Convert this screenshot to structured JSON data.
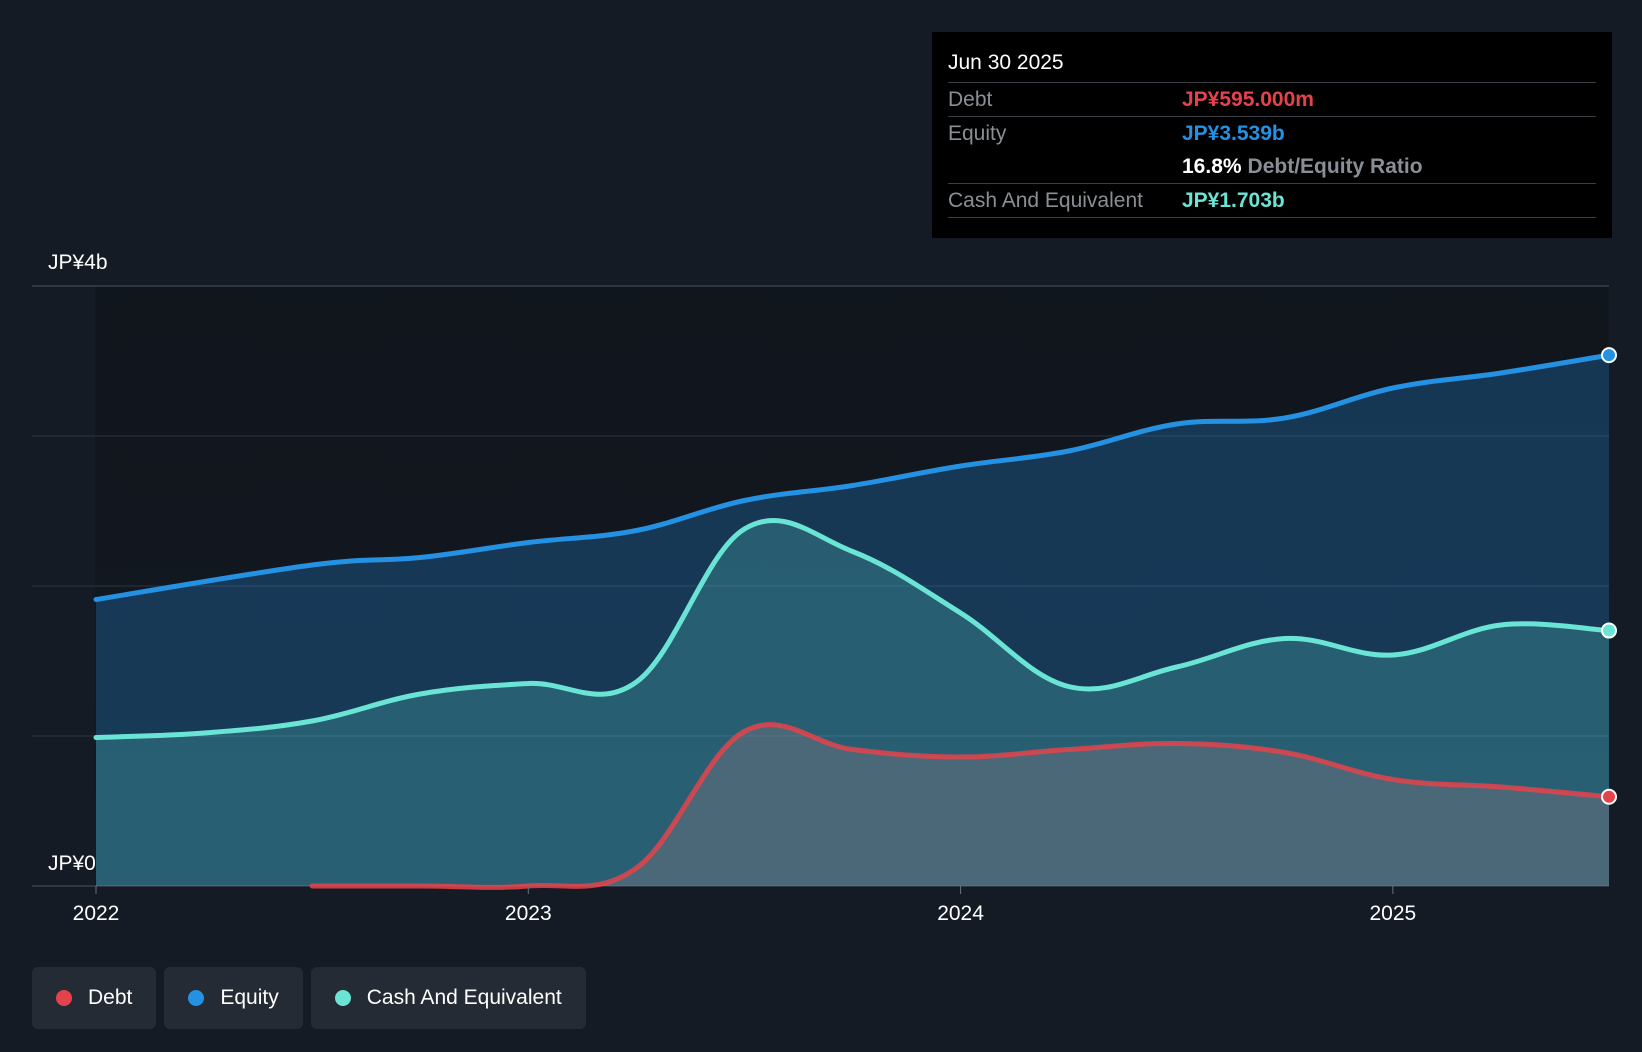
{
  "colors": {
    "background": "#151b24",
    "debt": "#e5434b",
    "equity": "#2491e3",
    "cash": "#6ae4d4"
  },
  "tooltip": {
    "date": "Jun 30 2025",
    "debt_label": "Debt",
    "debt_value": "JP¥595.000m",
    "equity_label": "Equity",
    "equity_value": "JP¥3.539b",
    "ratio_value": "16.8%",
    "ratio_label": "Debt/Equity Ratio",
    "cash_label": "Cash And Equivalent",
    "cash_value": "JP¥1.703b"
  },
  "legend": {
    "debt": "Debt",
    "equity": "Equity",
    "cash": "Cash And Equivalent"
  },
  "chart_data": {
    "type": "area",
    "title": "",
    "xlabel": "",
    "ylabel": "",
    "y_top_label": "JP¥4b",
    "y_bottom_label": "JP¥0",
    "ylim": [
      0,
      4
    ],
    "xlim": [
      2022.0,
      2025.5
    ],
    "grid": true,
    "x_ticks": [
      {
        "value": 2022,
        "label": "2022"
      },
      {
        "value": 2023,
        "label": "2023"
      },
      {
        "value": 2024,
        "label": "2024"
      },
      {
        "value": 2025,
        "label": "2025"
      }
    ],
    "series": [
      {
        "name": "Equity",
        "key": "equity",
        "x": [
          2022.0,
          2022.5,
          2022.75,
          2023.0,
          2023.25,
          2023.5,
          2023.75,
          2024.0,
          2024.25,
          2024.5,
          2024.75,
          2025.0,
          2025.25,
          2025.5
        ],
        "values": [
          1.91,
          2.14,
          2.19,
          2.29,
          2.37,
          2.57,
          2.67,
          2.8,
          2.9,
          3.08,
          3.12,
          3.32,
          3.42,
          3.539
        ]
      },
      {
        "name": "Cash And Equivalent",
        "key": "cash",
        "x": [
          2022.0,
          2022.25,
          2022.5,
          2022.75,
          2023.0,
          2023.25,
          2023.5,
          2023.75,
          2024.0,
          2024.25,
          2024.5,
          2024.75,
          2025.0,
          2025.25,
          2025.5
        ],
        "values": [
          0.99,
          1.02,
          1.1,
          1.28,
          1.35,
          1.36,
          2.38,
          2.23,
          1.82,
          1.33,
          1.46,
          1.65,
          1.54,
          1.74,
          1.703
        ]
      },
      {
        "name": "Debt",
        "key": "debt",
        "x": [
          2022.5,
          2022.75,
          2023.0,
          2023.25,
          2023.5,
          2023.75,
          2024.0,
          2024.25,
          2024.5,
          2024.75,
          2025.0,
          2025.25,
          2025.5
        ],
        "values": [
          0.0,
          0.0,
          0.0,
          0.12,
          1.03,
          0.91,
          0.86,
          0.91,
          0.95,
          0.89,
          0.71,
          0.66,
          0.595
        ]
      }
    ]
  }
}
